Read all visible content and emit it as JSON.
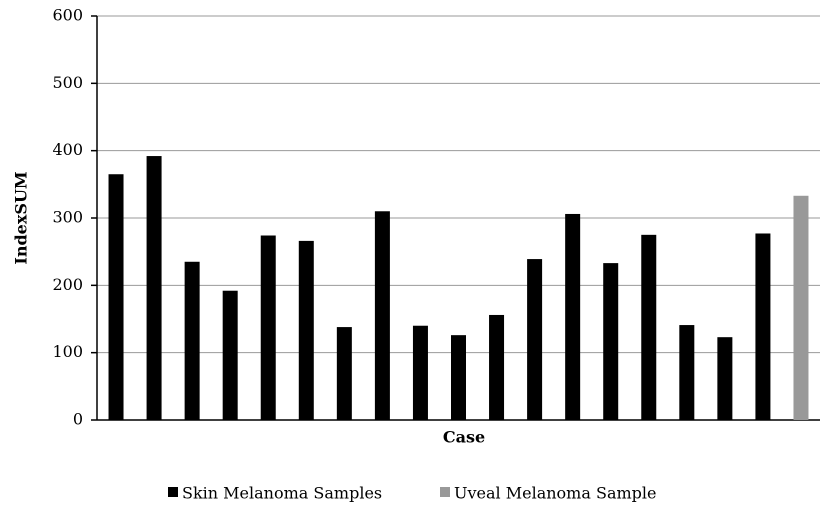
{
  "chart_data": {
    "type": "bar",
    "x_label": "Case",
    "y_label": "IndexSUM",
    "categories": [
      null,
      null,
      null,
      null,
      null,
      null,
      null,
      null,
      null,
      null,
      null,
      null,
      null,
      null,
      null,
      null,
      null,
      null,
      null
    ],
    "series": [
      {
        "name": "Skin Melanoma Samples",
        "color": "#000000",
        "values": [
          365,
          392,
          235,
          192,
          274,
          266,
          138,
          310,
          140,
          126,
          156,
          239,
          306,
          233,
          275,
          141,
          123,
          277,
          null
        ]
      },
      {
        "name": "Uveal Melanoma Sample",
        "color": "#999999",
        "values": [
          null,
          null,
          null,
          null,
          null,
          null,
          null,
          null,
          null,
          null,
          null,
          null,
          null,
          null,
          null,
          null,
          null,
          null,
          333
        ]
      }
    ],
    "ylim": [
      0,
      600
    ],
    "yticks": [
      0,
      100,
      200,
      300,
      400,
      500,
      600
    ],
    "grid": true,
    "legend": "bottom"
  }
}
